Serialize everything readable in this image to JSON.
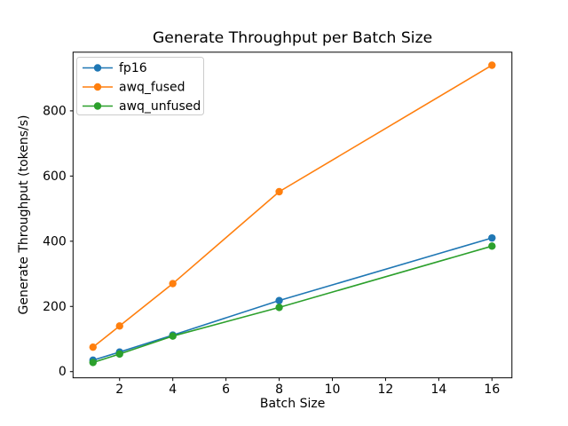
{
  "chart_data": {
    "type": "line",
    "title": "Generate Throughput per Batch Size",
    "xlabel": "Batch Size",
    "ylabel": "Generate Throughput (tokens/s)",
    "x": [
      1,
      2,
      4,
      8,
      16
    ],
    "series": [
      {
        "name": "fp16",
        "color": "#1f77b4",
        "values": [
          35,
          60,
          112,
          218,
          410
        ]
      },
      {
        "name": "awq_fused",
        "color": "#ff7f0e",
        "values": [
          75,
          140,
          270,
          552,
          940
        ]
      },
      {
        "name": "awq_unfused",
        "color": "#2ca02c",
        "values": [
          28,
          54,
          109,
          197,
          385
        ]
      }
    ],
    "xlim": [
      0.25,
      16.75
    ],
    "ylim": [
      -19,
      980
    ],
    "xticks": [
      2,
      4,
      6,
      8,
      10,
      12,
      14,
      16
    ],
    "yticks": [
      0,
      200,
      400,
      600,
      800
    ],
    "grid": false,
    "marker": "o",
    "legend_position": "upper left",
    "colors": {
      "spine": "#000000",
      "tick": "#000000",
      "legend_border": "#cccccc",
      "legend_bg": "#ffffff"
    }
  }
}
